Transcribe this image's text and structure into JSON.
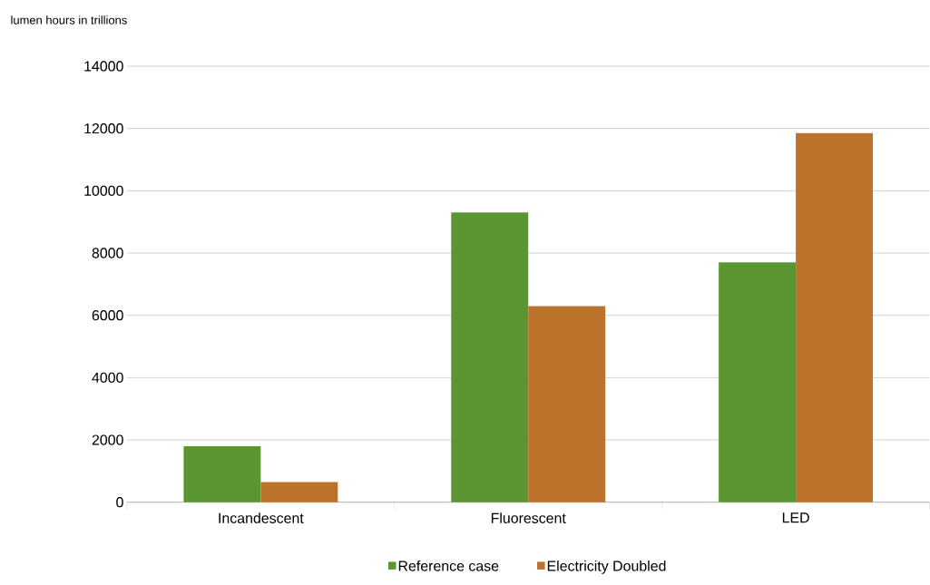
{
  "chart_data": {
    "type": "bar",
    "ylabel": "lumen hours in trillions",
    "categories": [
      "Incandescent",
      "Fluorescent",
      "LED"
    ],
    "series": [
      {
        "name": "Reference case",
        "color": "#5c9632",
        "values": [
          1800,
          9300,
          7700
        ]
      },
      {
        "name": "Electricity Doubled",
        "color": "#bd722b",
        "values": [
          650,
          6300,
          11850
        ]
      }
    ],
    "ylim": [
      0,
      14000
    ],
    "yticks": [
      0,
      2000,
      4000,
      6000,
      8000,
      10000,
      12000,
      14000
    ],
    "grid": "y",
    "legend": "bottom"
  }
}
